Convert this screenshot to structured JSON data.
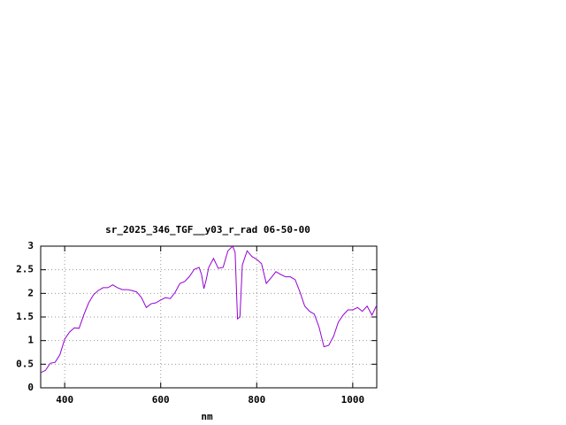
{
  "chart_data": {
    "type": "line",
    "title": "sr_2025_346_TGF__y03_r_rad 06-50-00",
    "x_label": "nm",
    "x": [
      350,
      360,
      370,
      380,
      390,
      400,
      410,
      420,
      430,
      440,
      450,
      460,
      470,
      480,
      490,
      500,
      510,
      520,
      530,
      540,
      550,
      560,
      570,
      580,
      590,
      600,
      610,
      620,
      630,
      640,
      650,
      660,
      670,
      680,
      685,
      690,
      695,
      700,
      710,
      720,
      730,
      740,
      750,
      755,
      760,
      765,
      770,
      780,
      790,
      800,
      810,
      820,
      830,
      840,
      850,
      860,
      870,
      880,
      890,
      900,
      910,
      920,
      930,
      940,
      950,
      960,
      970,
      980,
      990,
      1000,
      1010,
      1020,
      1030,
      1040,
      1050
    ],
    "series": [
      {
        "color": "#9400d3",
        "values": [
          0.32,
          0.37,
          0.52,
          0.54,
          0.7,
          1.03,
          1.18,
          1.27,
          1.26,
          1.55,
          1.8,
          1.97,
          2.06,
          2.12,
          2.12,
          2.18,
          2.12,
          2.08,
          2.08,
          2.06,
          2.03,
          1.91,
          1.7,
          1.78,
          1.8,
          1.86,
          1.91,
          1.89,
          2.02,
          2.21,
          2.25,
          2.36,
          2.51,
          2.55,
          2.4,
          2.1,
          2.3,
          2.55,
          2.74,
          2.53,
          2.55,
          2.9,
          3.0,
          2.87,
          1.46,
          1.5,
          2.6,
          2.9,
          2.78,
          2.72,
          2.63,
          2.21,
          2.33,
          2.46,
          2.4,
          2.35,
          2.35,
          2.29,
          2.03,
          1.73,
          1.62,
          1.56,
          1.28,
          0.87,
          0.9,
          1.09,
          1.39,
          1.54,
          1.65,
          1.65,
          1.7,
          1.62,
          1.73,
          1.54,
          1.75
        ]
      }
    ],
    "xlim": [
      350,
      1050
    ],
    "xticks": [
      400,
      600,
      800,
      1000
    ],
    "ylim": [
      0,
      3
    ],
    "yticks": [
      0,
      0.5,
      1,
      1.5,
      2,
      2.5,
      3
    ],
    "grid": true
  }
}
